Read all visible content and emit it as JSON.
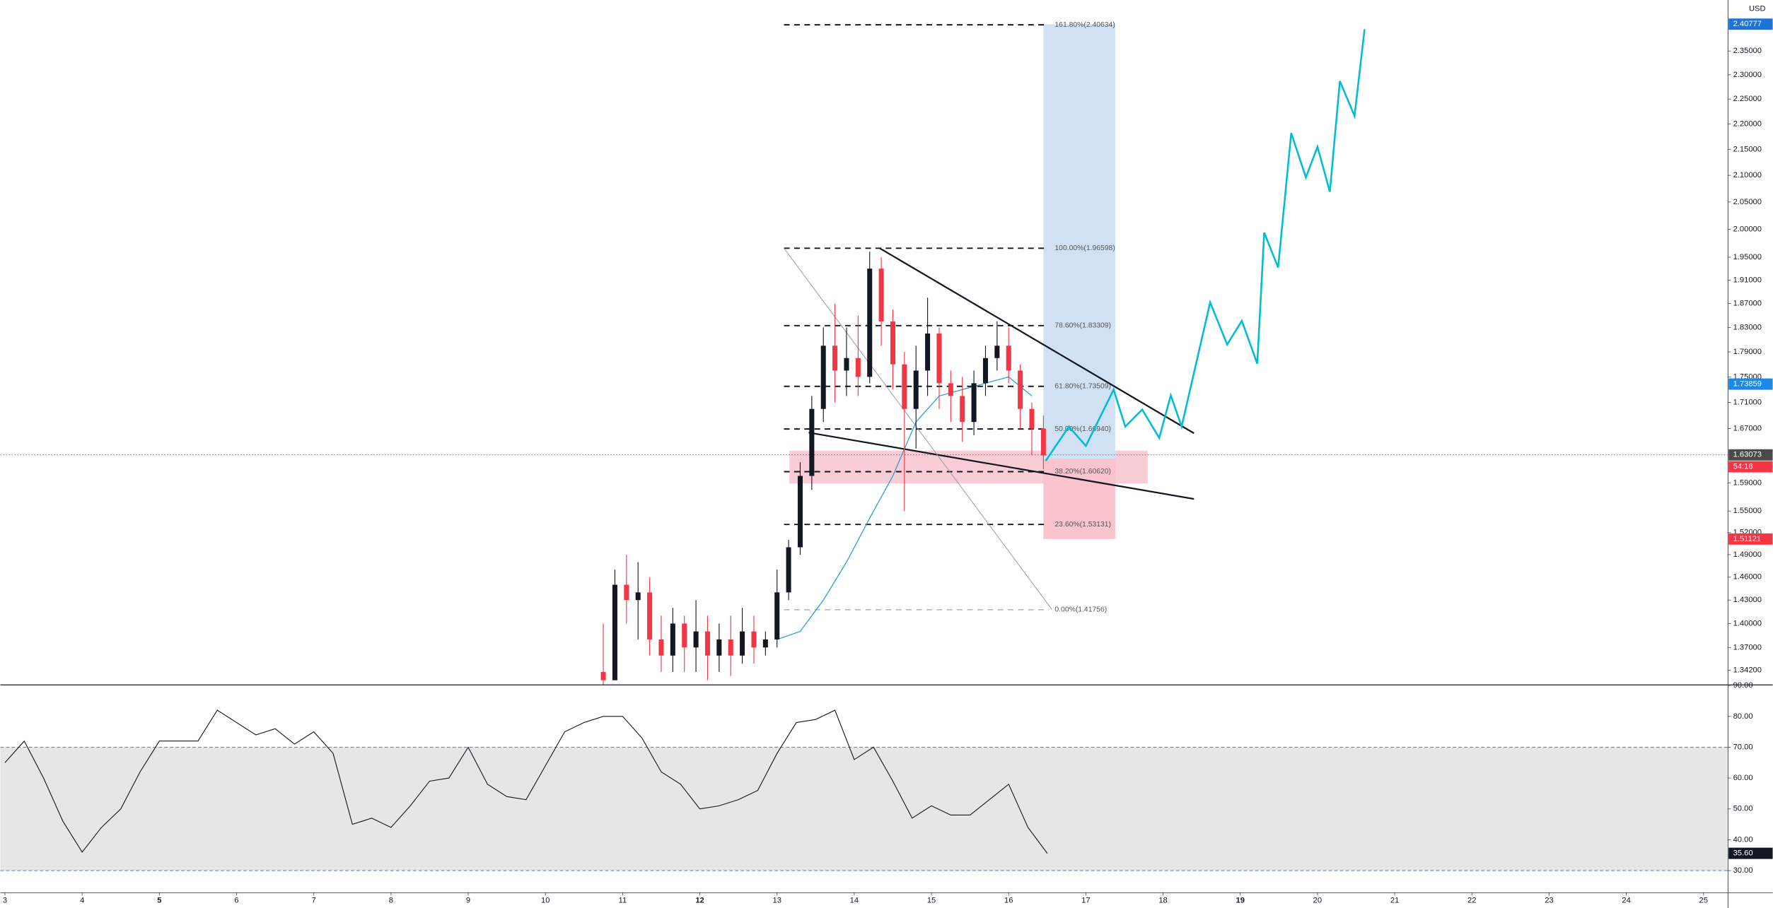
{
  "chart_data": [
    {
      "type": "candlestick",
      "currency": "USD",
      "log_scale": true,
      "grid": false,
      "xlim": [
        2.94,
        25.31
      ],
      "ylim": [
        1.325,
        2.461
      ],
      "yticks": [
        {
          "value": 2.35,
          "label": "2.35000"
        },
        {
          "value": 2.3,
          "label": "2.30000"
        },
        {
          "value": 2.25,
          "label": "2.25000"
        },
        {
          "value": 2.2,
          "label": "2.20000"
        },
        {
          "value": 2.15,
          "label": "2.15000"
        },
        {
          "value": 2.1,
          "label": "2.10000"
        },
        {
          "value": 2.05,
          "label": "2.05000"
        },
        {
          "value": 2.0,
          "label": "2.00000"
        },
        {
          "value": 1.95,
          "label": "1.95000"
        },
        {
          "value": 1.91,
          "label": "1.91000"
        },
        {
          "value": 1.87,
          "label": "1.87000"
        },
        {
          "value": 1.83,
          "label": "1.83000"
        },
        {
          "value": 1.79,
          "label": "1.79000"
        },
        {
          "value": 1.75,
          "label": "1.75000"
        },
        {
          "value": 1.71,
          "label": "1.71000"
        },
        {
          "value": 1.67,
          "label": "1.67000"
        },
        {
          "value": 1.59,
          "label": "1.59000"
        },
        {
          "value": 1.55,
          "label": "1.55000"
        },
        {
          "value": 1.52,
          "label": "1.52000"
        },
        {
          "value": 1.49,
          "label": "1.49000"
        },
        {
          "value": 1.46,
          "label": "1.46000"
        },
        {
          "value": 1.43,
          "label": "1.43000"
        },
        {
          "value": 1.4,
          "label": "1.40000"
        },
        {
          "value": 1.37,
          "label": "1.37000"
        },
        {
          "value": 1.342,
          "label": "1.34200"
        }
      ],
      "up_color": "#131722",
      "down_color": "#f23645",
      "x": [
        10.75,
        10.9,
        11.05,
        11.2,
        11.35,
        11.5,
        11.65,
        11.8,
        11.95,
        12.1,
        12.25,
        12.4,
        12.55,
        12.7,
        12.85,
        13,
        13.15,
        13.3,
        13.45,
        13.6,
        13.75,
        13.9,
        14.05,
        14.2,
        14.35,
        14.5,
        14.65,
        14.8,
        14.95,
        15.1,
        15.25,
        15.4,
        15.55,
        15.7,
        15.85,
        16,
        16.15,
        16.3,
        16.45
      ],
      "open": [
        1.34,
        1.33,
        1.45,
        1.43,
        1.44,
        1.38,
        1.36,
        1.4,
        1.37,
        1.39,
        1.36,
        1.38,
        1.36,
        1.39,
        1.37,
        1.38,
        1.44,
        1.5,
        1.6,
        1.7,
        1.8,
        1.76,
        1.78,
        1.75,
        1.93,
        1.84,
        1.77,
        1.7,
        1.76,
        1.82,
        1.74,
        1.72,
        1.68,
        1.74,
        1.78,
        1.8,
        1.76,
        1.7,
        1.67
      ],
      "high": [
        1.4,
        1.47,
        1.49,
        1.48,
        1.46,
        1.41,
        1.42,
        1.41,
        1.43,
        1.41,
        1.4,
        1.41,
        1.42,
        1.41,
        1.39,
        1.47,
        1.51,
        1.62,
        1.72,
        1.83,
        1.87,
        1.83,
        1.85,
        1.96,
        1.95,
        1.86,
        1.79,
        1.8,
        1.88,
        1.83,
        1.76,
        1.75,
        1.76,
        1.8,
        1.84,
        1.83,
        1.77,
        1.71,
        1.69
      ],
      "low": [
        1.325,
        1.33,
        1.4,
        1.38,
        1.36,
        1.34,
        1.34,
        1.34,
        1.34,
        1.33,
        1.34,
        1.335,
        1.35,
        1.35,
        1.36,
        1.37,
        1.43,
        1.49,
        1.58,
        1.68,
        1.71,
        1.72,
        1.72,
        1.74,
        1.8,
        1.73,
        1.55,
        1.64,
        1.72,
        1.7,
        1.68,
        1.65,
        1.66,
        1.72,
        1.76,
        1.74,
        1.67,
        1.63,
        1.61
      ],
      "close": [
        1.33,
        1.45,
        1.43,
        1.44,
        1.38,
        1.36,
        1.4,
        1.37,
        1.39,
        1.36,
        1.38,
        1.36,
        1.39,
        1.37,
        1.38,
        1.44,
        1.5,
        1.6,
        1.7,
        1.8,
        1.76,
        1.78,
        1.75,
        1.93,
        1.84,
        1.77,
        1.7,
        1.76,
        1.82,
        1.74,
        1.72,
        1.68,
        1.74,
        1.78,
        1.8,
        1.76,
        1.7,
        1.67,
        1.63
      ],
      "ma": {
        "color": "#2a9fd6",
        "x": [
          13.0,
          13.3,
          13.6,
          13.9,
          14.2,
          14.5,
          14.8,
          15.1,
          15.4,
          15.7,
          16.0,
          16.3
        ],
        "values": [
          1.38,
          1.39,
          1.43,
          1.48,
          1.54,
          1.6,
          1.68,
          1.72,
          1.73,
          1.74,
          1.75,
          1.72
        ]
      },
      "forecast": {
        "color": "#00bcd4",
        "x": [
          16.48,
          16.78,
          17.0,
          17.36,
          17.51,
          17.73,
          17.95,
          18.1,
          18.24,
          18.61,
          18.83,
          19.02,
          19.22,
          19.31,
          19.49,
          19.66,
          19.85,
          20.0,
          20.16,
          20.29,
          20.48,
          20.61
        ],
        "values": [
          1.622,
          1.673,
          1.644,
          1.73,
          1.673,
          1.699,
          1.656,
          1.721,
          1.673,
          1.872,
          1.802,
          1.841,
          1.771,
          1.994,
          1.932,
          2.182,
          2.096,
          2.155,
          2.069,
          2.287,
          2.216,
          2.397
        ]
      },
      "fib_x": [
        13.09,
        16.48
      ],
      "fib_levels": [
        {
          "label": "161.80%(2.40634)",
          "value": 2.40634,
          "color": "#131722"
        },
        {
          "label": "100.00%(1.96598)",
          "value": 1.96598,
          "color": "#131722"
        },
        {
          "label": "78.60%(1.83309)",
          "value": 1.83309,
          "color": "#131722"
        },
        {
          "label": "61.80%(1.73509)",
          "value": 1.73509,
          "color": "#131722"
        },
        {
          "label": "50.00%(1.66940)",
          "value": 1.6694,
          "color": "#131722"
        },
        {
          "label": "38.20%(1.60620)",
          "value": 1.6062,
          "color": "#131722"
        },
        {
          "label": "23.60%(1.53131)",
          "value": 1.53131,
          "color": "#131722"
        },
        {
          "label": "0.00%(1.41756)",
          "value": 1.41756,
          "color": "#9598a1"
        }
      ],
      "lines": [
        {
          "x": [
            14.33,
            18.4
          ],
          "y": [
            1.966,
            1.663
          ],
          "color": "#131722",
          "width": 1.4
        },
        {
          "x": [
            13.41,
            18.4
          ],
          "y": [
            1.664,
            1.567
          ],
          "color": "#131722",
          "width": 1.4
        },
        {
          "x": [
            13.09,
            16.56
          ],
          "y": [
            1.966,
            1.418
          ],
          "color": "#9598a1",
          "width": 0.6
        }
      ],
      "zone": {
        "x": [
          13.16,
          17.8
        ],
        "y": [
          1.589,
          1.637
        ],
        "color": "#f7c1cb"
      },
      "position": {
        "x": [
          16.45,
          17.38
        ],
        "target": 2.40777,
        "entry": 1.625,
        "stop": 1.51121,
        "profit_color": "#cfe1f3",
        "loss_color": "#f9c4ce"
      },
      "tags": [
        {
          "value": 2.40777,
          "color": "#1e73d8"
        },
        {
          "value": 1.73859,
          "color": "#1e88e5"
        },
        {
          "value": 1.63073,
          "color": "#4a4a4a",
          "dotted": true
        },
        {
          "label": "54:16",
          "color": "#f23645"
        },
        {
          "value": 1.51121,
          "color": "#f23645"
        }
      ]
    },
    {
      "type": "line",
      "xlim": [
        2.94,
        25.31
      ],
      "ylim": [
        23,
        90
      ],
      "xticks": [
        3,
        4,
        5,
        6,
        7,
        8,
        9,
        10,
        11,
        12,
        13,
        14,
        15,
        16,
        17,
        18,
        19,
        20,
        21,
        22,
        23,
        24,
        25
      ],
      "bold_xticks": [
        5,
        12,
        19
      ],
      "yticks": [
        {
          "value": 90,
          "label": "90.00"
        },
        {
          "value": 80,
          "label": "80.00"
        },
        {
          "value": 70,
          "label": "70.00"
        },
        {
          "value": 60,
          "label": "60.00"
        },
        {
          "value": 50,
          "label": "50.00"
        },
        {
          "value": 40,
          "label": "40.00"
        },
        {
          "value": 30,
          "label": "30.00"
        }
      ],
      "levels": [
        {
          "value": 70,
          "color": "#f23645"
        },
        {
          "value": 30,
          "color": "#2962ff"
        }
      ],
      "band_color": "#e6e6e6",
      "color": "#131722",
      "x": [
        3.0,
        3.25,
        3.5,
        3.75,
        4.0,
        4.25,
        4.5,
        4.75,
        5.0,
        5.25,
        5.5,
        5.75,
        6.0,
        6.25,
        6.5,
        6.75,
        7.0,
        7.25,
        7.5,
        7.75,
        8.0,
        8.25,
        8.5,
        8.75,
        9.0,
        9.25,
        9.5,
        9.75,
        10.0,
        10.25,
        10.5,
        10.75,
        11.0,
        11.25,
        11.5,
        11.75,
        12.0,
        12.25,
        12.5,
        12.75,
        13.0,
        13.25,
        13.5,
        13.75,
        14.0,
        14.25,
        14.5,
        14.75,
        15.0,
        15.25,
        15.5,
        15.75,
        16.0,
        16.25,
        16.5
      ],
      "values": [
        65,
        72,
        60,
        46,
        36,
        44,
        50,
        62,
        72,
        72,
        72,
        82,
        78,
        74,
        76,
        71,
        75,
        68,
        45,
        47,
        44,
        51,
        59,
        60,
        70,
        58,
        54,
        53,
        64,
        75,
        78,
        80,
        80,
        73,
        62,
        58,
        50,
        51,
        53,
        56,
        68,
        78,
        79,
        82,
        66,
        70,
        59,
        47,
        51,
        48,
        48,
        53,
        58,
        44,
        35.6
      ],
      "tag": {
        "value": 35.6,
        "label": "35.60",
        "color": "#131722"
      }
    }
  ]
}
